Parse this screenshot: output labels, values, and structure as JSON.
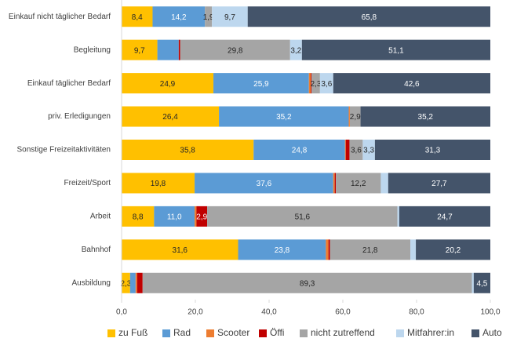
{
  "chart_data": {
    "type": "stacked_barh",
    "categories": [
      "Einkauf nicht täglicher Bedarf",
      "Begleitung",
      "Einkauf täglicher Bedarf",
      "priv. Erledigungen",
      "Sonstige Freizeitaktivitäten",
      "Freizeit/Sport",
      "Arbeit",
      "Bahnhof",
      "Ausbildung"
    ],
    "series": [
      {
        "name": "zu Fuß",
        "color": "#ffc000",
        "values": [
          8.4,
          9.7,
          24.9,
          26.4,
          35.8,
          19.8,
          8.8,
          31.6,
          2.3
        ],
        "value_labels": [
          "8,4",
          "9,7",
          "24,9",
          "26,4",
          "35,8",
          "19,8",
          "8,8",
          "31,6",
          "2,3"
        ]
      },
      {
        "name": "Rad",
        "color": "#5b9bd5",
        "values": [
          14.2,
          5.8,
          25.9,
          35.2,
          24.8,
          37.6,
          11.0,
          23.8,
          1.5
        ],
        "value_labels": [
          "14,2",
          null,
          "25,9",
          "35,2",
          "24,8",
          "37,6",
          "11,0",
          "23,8",
          null
        ]
      },
      {
        "name": "Scooter",
        "color": "#ed7d31",
        "values": [
          0,
          0,
          0.5,
          0.3,
          0.2,
          0.4,
          0.5,
          0.7,
          0.4
        ],
        "value_labels": [
          null,
          null,
          null,
          null,
          null,
          null,
          null,
          null,
          null
        ]
      },
      {
        "name": "Öffi",
        "color": "#c00000",
        "values": [
          0,
          0.4,
          0.2,
          0,
          1.0,
          0.3,
          2.9,
          0.4,
          1.5
        ],
        "value_labels": [
          null,
          null,
          null,
          null,
          null,
          null,
          "2,9",
          null,
          null
        ]
      },
      {
        "name": "nicht zutreffend",
        "color": "#a5a5a5",
        "values": [
          1.9,
          29.8,
          2.3,
          2.9,
          3.6,
          12.2,
          51.6,
          21.8,
          89.3
        ],
        "value_labels": [
          "1,9",
          "29,8",
          "2,3",
          "2,9",
          "3,6",
          "12,2",
          "51,6",
          "21,8",
          "89,3"
        ]
      },
      {
        "name": "Mitfahrer:in",
        "color": "#bdd7ee",
        "values": [
          9.7,
          3.2,
          3.6,
          0,
          3.3,
          2.0,
          0.5,
          1.5,
          0.5
        ],
        "value_labels": [
          "9,7",
          "3,2",
          "3,6",
          null,
          "3,3",
          null,
          null,
          null,
          null
        ]
      },
      {
        "name": "Auto",
        "color": "#44546a",
        "values": [
          65.8,
          51.1,
          42.6,
          35.2,
          31.3,
          27.7,
          24.7,
          20.2,
          4.5
        ],
        "value_labels": [
          "65,8",
          "51,1",
          "42,6",
          "35,2",
          "31,3",
          "27,7",
          "24,7",
          "20,2",
          "4,5"
        ]
      }
    ],
    "xlim": [
      0,
      100
    ],
    "xticks": [
      {
        "value": 0,
        "label": "0,0"
      },
      {
        "value": 20,
        "label": "20,0"
      },
      {
        "value": 40,
        "label": "40,0"
      },
      {
        "value": 60,
        "label": "60,0"
      },
      {
        "value": 80,
        "label": "80,0"
      },
      {
        "value": 100,
        "label": "100,0"
      }
    ],
    "legend": "bottom"
  }
}
